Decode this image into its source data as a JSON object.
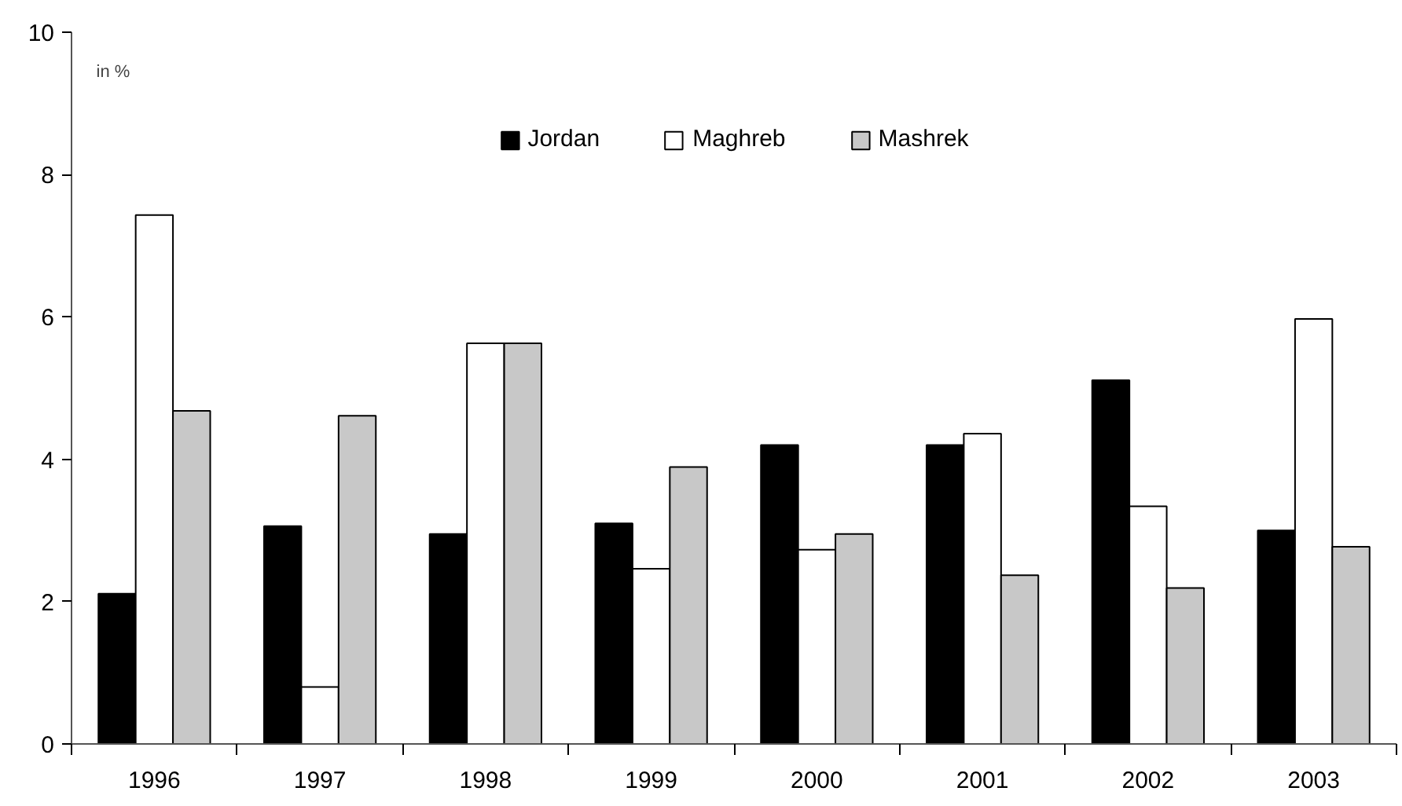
{
  "chart_data": {
    "type": "bar",
    "categories": [
      "1996",
      "1997",
      "1998",
      "1999",
      "2000",
      "2001",
      "2002",
      "2003"
    ],
    "series": [
      {
        "name": "Jordan",
        "color": "#000000",
        "values": [
          2.11,
          3.06,
          2.95,
          3.1,
          4.2,
          4.2,
          5.11,
          3.0
        ]
      },
      {
        "name": "Maghreb",
        "color": "#ffffff",
        "values": [
          7.43,
          0.8,
          5.63,
          2.46,
          2.73,
          4.36,
          3.34,
          5.97
        ]
      },
      {
        "name": "Mashrek",
        "color": "#c8c8c8",
        "values": [
          4.68,
          4.61,
          5.63,
          3.89,
          2.95,
          2.37,
          2.19,
          2.77
        ]
      }
    ],
    "ylim": [
      0,
      10
    ],
    "yticks": [
      0,
      2,
      4,
      6,
      8,
      10
    ],
    "annotations": [
      "in %"
    ],
    "legend": "top",
    "grid": false
  }
}
